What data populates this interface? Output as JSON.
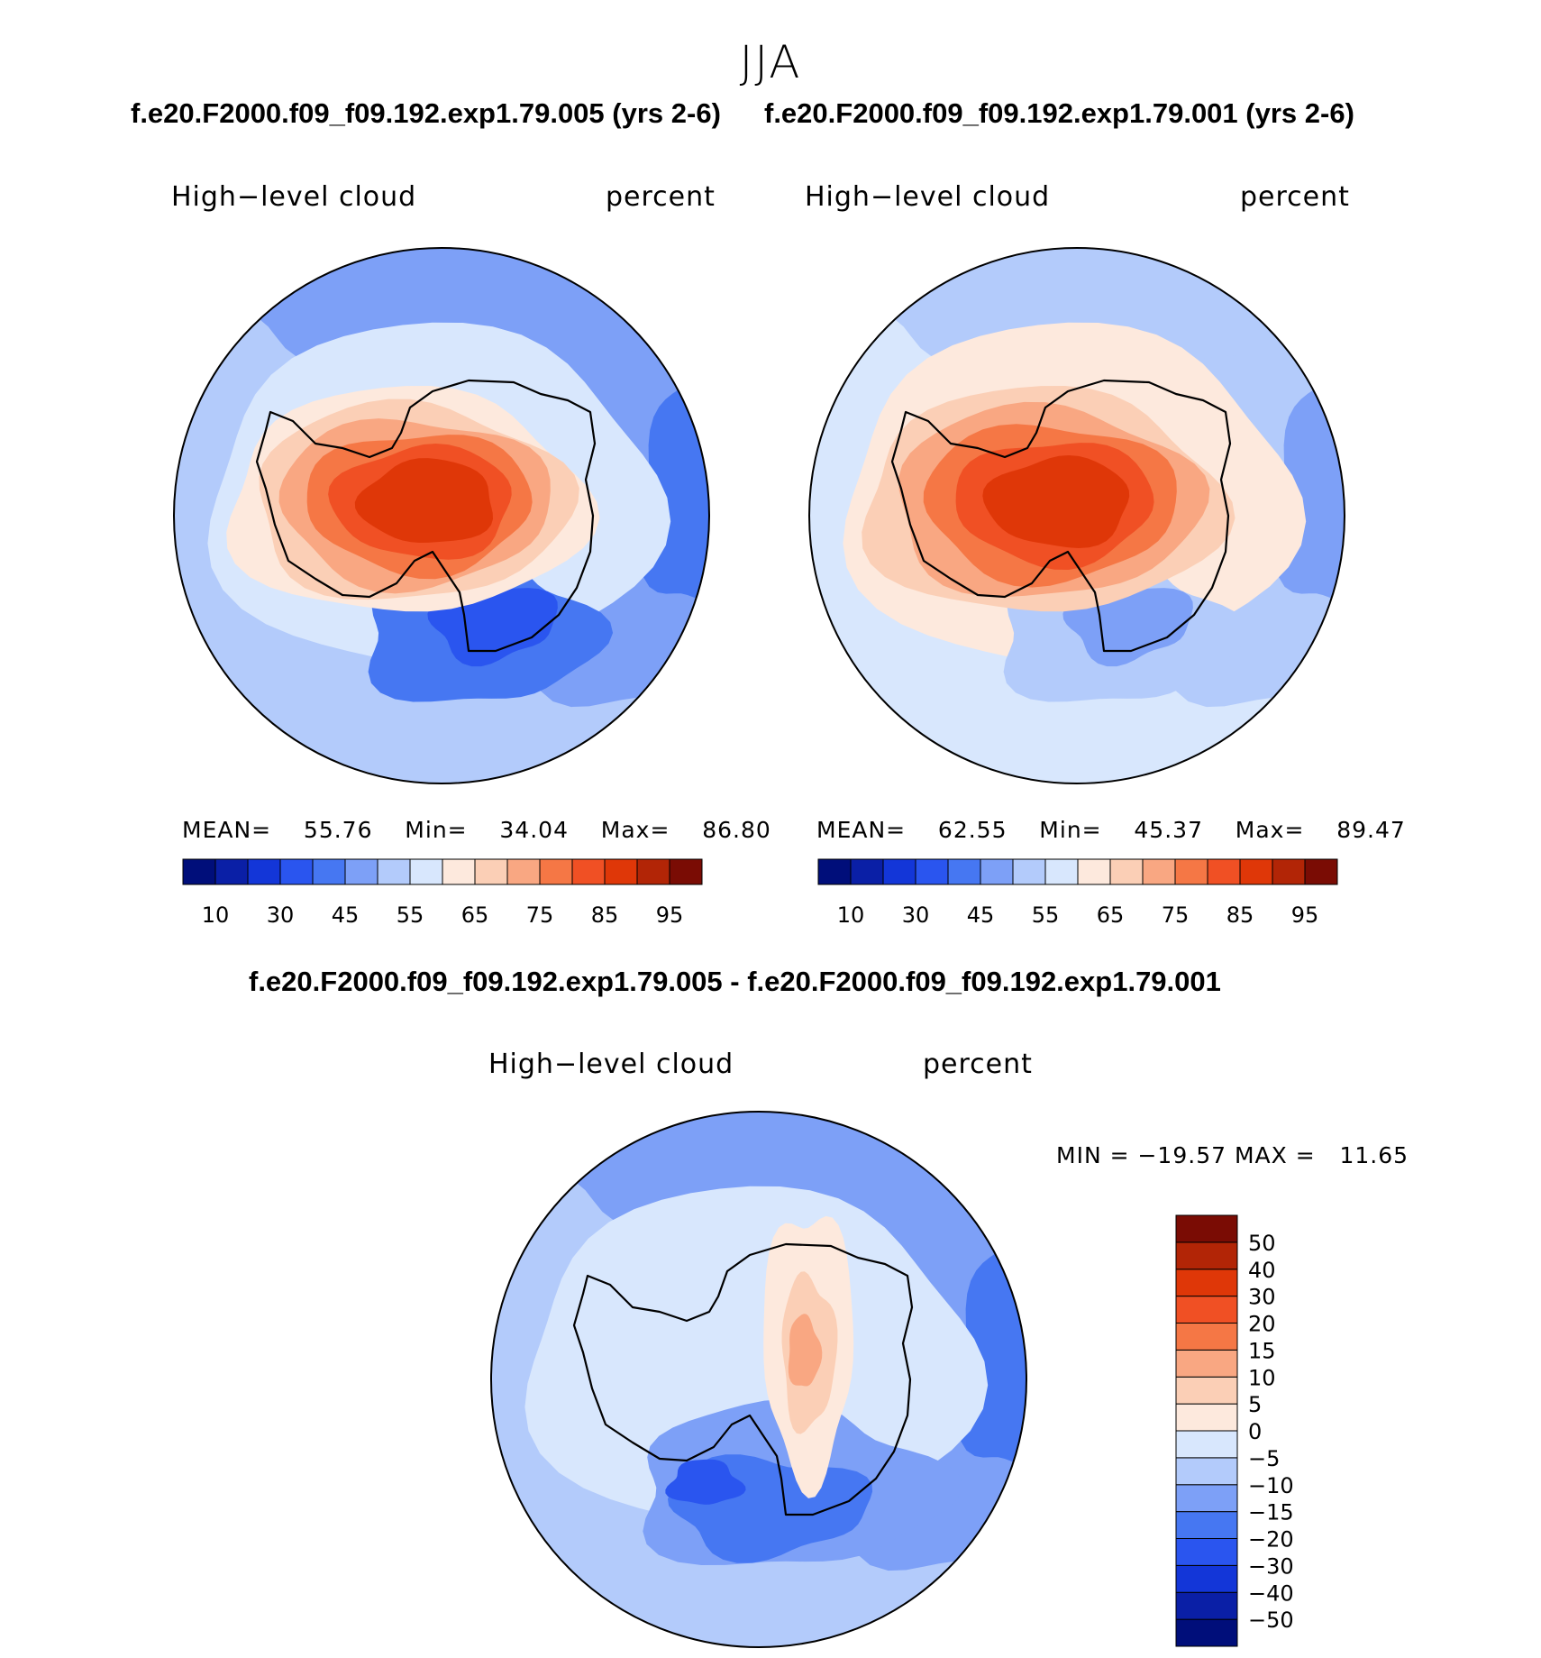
{
  "season": "JJA",
  "titles": {
    "test": "f.e20.F2000.f09_f09.192.exp1.79.005 (yrs 2-6)",
    "control": "f.e20.F2000.f09_f09.192.exp1.79.001 (yrs 2-6)",
    "diff": "f.e20.F2000.f09_f09.192.exp1.79.005 - f.e20.F2000.f09_f09.192.exp1.79.001"
  },
  "panels": [
    {
      "id": "test",
      "variable": "High−level cloud",
      "units": "percent",
      "mean_label": "MEAN=",
      "mean": "55.76",
      "min_label": "Min=",
      "min": "34.04",
      "max_label": "Max=",
      "max": "86.80"
    },
    {
      "id": "control",
      "variable": "High−level cloud",
      "units": "percent",
      "mean_label": "MEAN=",
      "mean": "62.55",
      "min_label": "Min=",
      "min": "45.37",
      "max_label": "Max=",
      "max": "89.47"
    }
  ],
  "diff_panel": {
    "variable": "High−level cloud",
    "units": "percent",
    "minmax_text": "MIN = −19.57 MAX =   11.65"
  },
  "colorbar_abs": {
    "colors": [
      "#000e7a",
      "#0a1fa6",
      "#1336d8",
      "#2a55ef",
      "#4677f2",
      "#7da0f7",
      "#b3cbfb",
      "#d8e7fd",
      "#fde9dd",
      "#fbcfb6",
      "#f9a782",
      "#f57745",
      "#f05024",
      "#df3708",
      "#b22506",
      "#7a0c04"
    ],
    "labels": [
      "10",
      "30",
      "45",
      "55",
      "65",
      "75",
      "85",
      "95"
    ]
  },
  "colorbar_diff": {
    "colors": [
      "#000e7a",
      "#0a1fa6",
      "#1336d8",
      "#2a55ef",
      "#4677f2",
      "#7da0f7",
      "#b3cbfb",
      "#d8e7fd",
      "#fde9dd",
      "#fbcfb6",
      "#f9a782",
      "#f57745",
      "#f05024",
      "#df3708",
      "#b22506",
      "#7a0c04"
    ],
    "labels": [
      "−50",
      "−40",
      "−30",
      "−20",
      "−15",
      "−10",
      "−5",
      "0",
      "5",
      "10",
      "15",
      "20",
      "30",
      "40",
      "50"
    ]
  },
  "map_fills": {
    "test": {
      "ocean": "#b3cbfb",
      "outer": "#7da0f7",
      "edge": "#4677f2",
      "ring": "#d8e7fd",
      "plateau": [
        "#fde9dd",
        "#fbcfb6",
        "#f9a782",
        "#f57745",
        "#f05024",
        "#df3708"
      ],
      "trough": [
        "#4677f2",
        "#2a55ef"
      ]
    },
    "control": {
      "ocean": "#d8e7fd",
      "outer": "#b3cbfb",
      "edge": "#7da0f7",
      "ring": "#fde9dd",
      "plateau": [
        "#fbcfb6",
        "#f9a782",
        "#f57745",
        "#f05024",
        "#df3708"
      ],
      "trough": [
        "#b3cbfb",
        "#7da0f7"
      ]
    },
    "diff": {
      "ocean": "#b3cbfb",
      "outer": "#7da0f7",
      "edge": "#4677f2",
      "ring": "#d8e7fd",
      "warm": [
        "#fde9dd",
        "#fbcfb6",
        "#f9a782"
      ],
      "trough": [
        "#7da0f7",
        "#4677f2",
        "#2a55ef"
      ]
    }
  }
}
